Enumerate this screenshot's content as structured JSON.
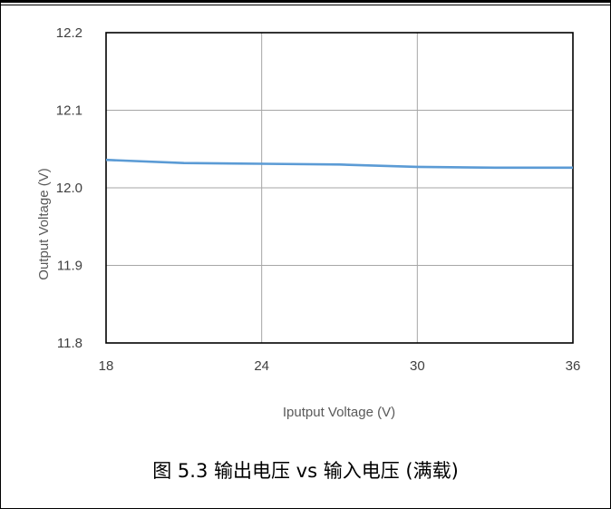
{
  "figure": {
    "caption": "图 5.3 输出电压 vs 输入电压 (满载)"
  },
  "chart_data": {
    "type": "line",
    "xlabel": "Iputput Voltage (V)",
    "ylabel": "Output Voltage (V)",
    "xlim": [
      18,
      36
    ],
    "ylim": [
      11.8,
      12.2
    ],
    "x_ticks": [
      "18",
      "24",
      "30",
      "36"
    ],
    "y_ticks": [
      "11.8",
      "11.9",
      "12.0",
      "12.1",
      "12.2"
    ],
    "grid": true,
    "series": [
      {
        "color": "#5b9bd5",
        "x": [
          18,
          21,
          24,
          27,
          30,
          33,
          36
        ],
        "y": [
          12.036,
          12.032,
          12.031,
          12.03,
          12.027,
          12.026,
          12.026
        ]
      }
    ]
  }
}
